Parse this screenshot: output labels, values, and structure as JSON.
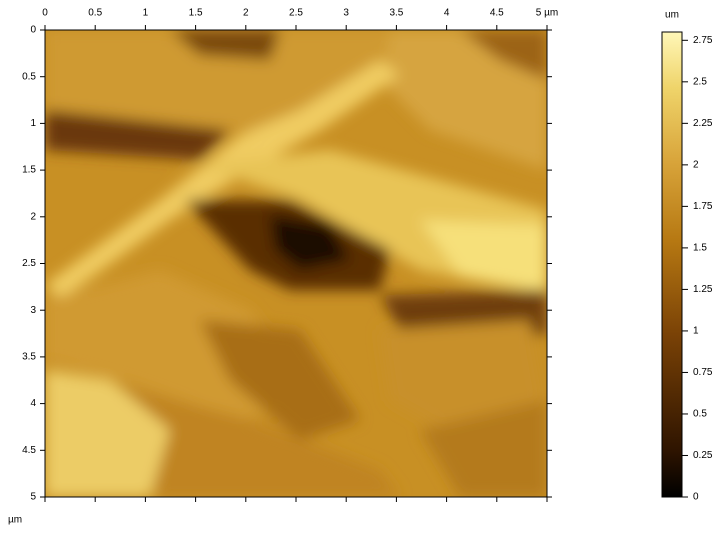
{
  "chart_data": {
    "type": "heatmap",
    "ylabel": "µm",
    "y_inverted": true,
    "xlim": [
      0,
      5
    ],
    "xticks": [
      0,
      0.5,
      1,
      1.5,
      2,
      2.5,
      3,
      3.5,
      4,
      4.5,
      {
        "value": 5,
        "label": "5 µm"
      }
    ],
    "ylim": [
      0,
      5
    ],
    "yticks": [
      0,
      0.5,
      1,
      1.5,
      2,
      2.5,
      3,
      3.5,
      4,
      4.5,
      5
    ],
    "colorbar": {
      "label": "um",
      "lim": [
        0,
        2.8
      ],
      "ticks": [
        0,
        0.25,
        0.5,
        0.75,
        1,
        1.25,
        1.5,
        1.75,
        2,
        2.25,
        2.5,
        2.75
      ]
    }
  }
}
